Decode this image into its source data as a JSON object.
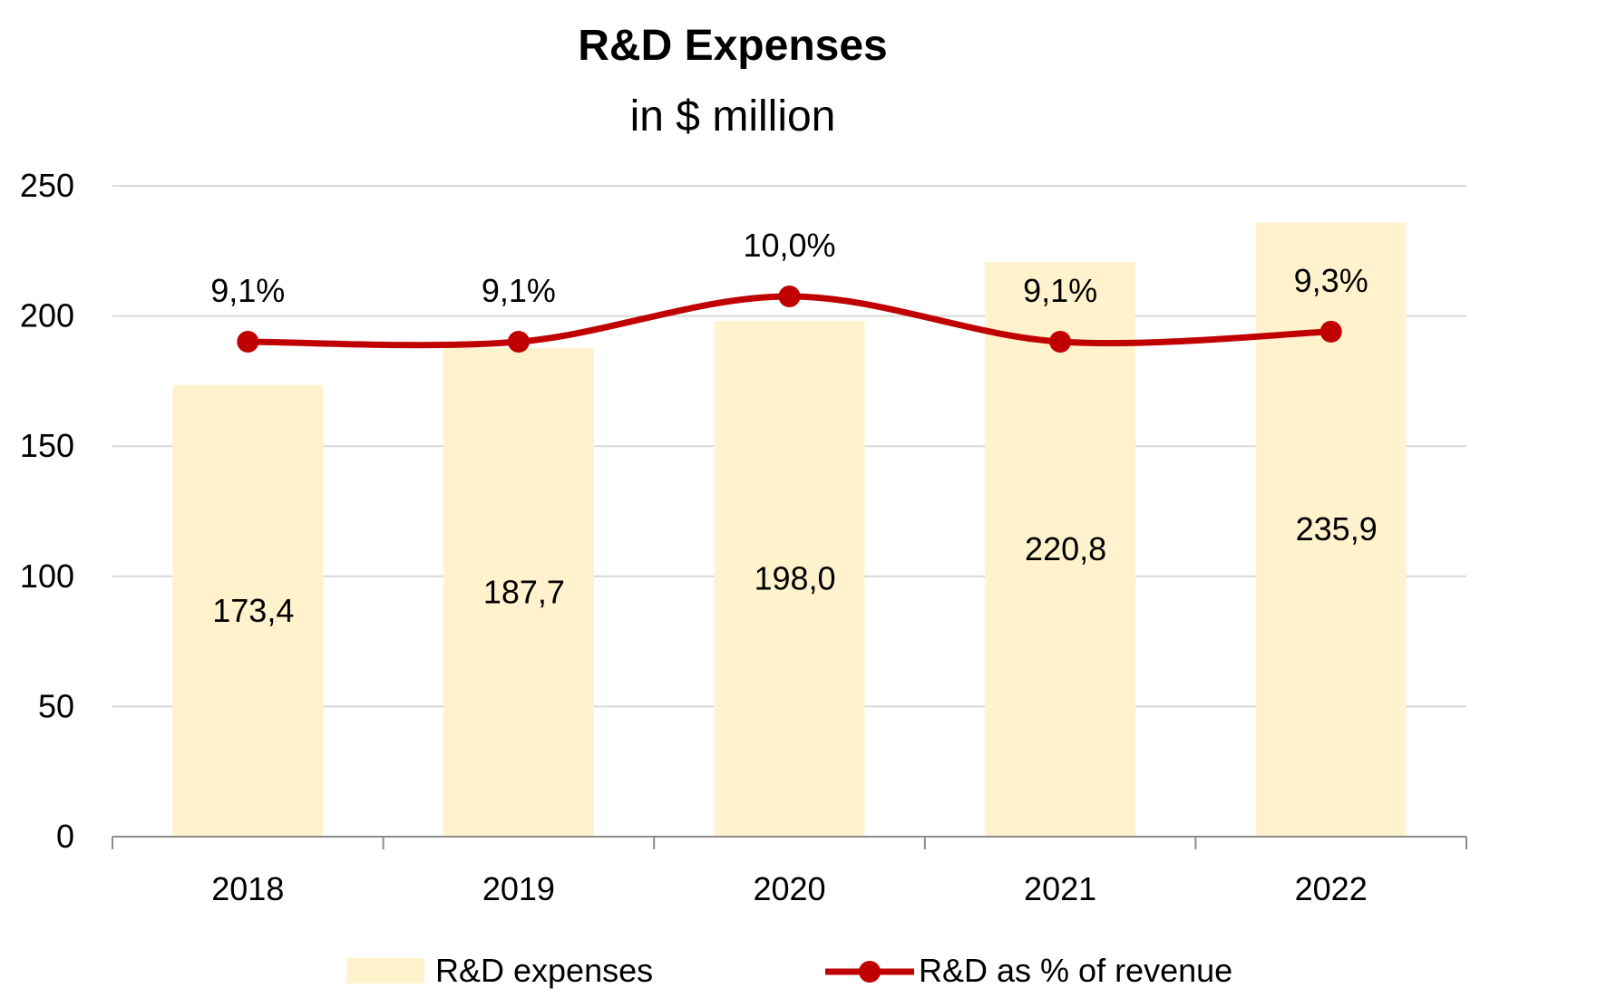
{
  "chart_data": {
    "type": "bar",
    "title": "R&D Expenses",
    "subtitle": "in $ million",
    "categories": [
      "2018",
      "2019",
      "2020",
      "2021",
      "2022"
    ],
    "series": [
      {
        "name": "R&D expenses",
        "type": "bar",
        "values": [
          173.4,
          187.7,
          198.0,
          220.8,
          235.9
        ],
        "labels": [
          "173,4",
          "187,7",
          "198,0",
          "220,8",
          "235,9"
        ],
        "color": "#FFF2CC"
      },
      {
        "name": "R&D as % of revenue",
        "type": "line",
        "values": [
          9.1,
          9.1,
          10.0,
          9.1,
          9.3
        ],
        "labels": [
          "9,1%",
          "9,1%",
          "10,0%",
          "9,1%",
          "9,3%"
        ],
        "color": "#C00000",
        "secondary_axis": true
      }
    ],
    "ylim": [
      0,
      250
    ],
    "yticks": [
      "0",
      "50",
      "100",
      "150",
      "200",
      "250"
    ],
    "grid": true,
    "legend_position": "bottom"
  }
}
